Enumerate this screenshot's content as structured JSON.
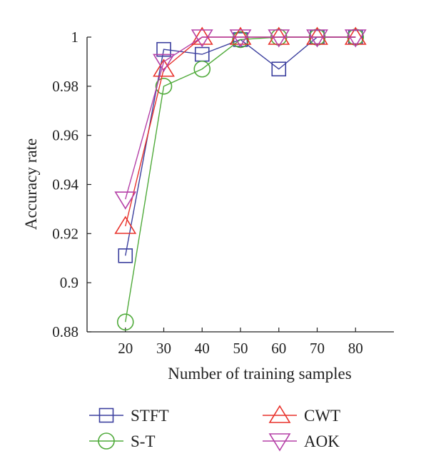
{
  "chart_data": {
    "type": "line",
    "title": "",
    "xlabel": "Number of training samples",
    "ylabel": "Accuracy rate",
    "x": [
      20,
      30,
      40,
      50,
      60,
      70,
      80
    ],
    "x_tick_labels": [
      "20",
      "30",
      "40",
      "50",
      "60",
      "70",
      "80"
    ],
    "xlim": [
      10,
      90
    ],
    "ylim": [
      0.88,
      1.0
    ],
    "y_ticks": [
      0.88,
      0.9,
      0.92,
      0.94,
      0.96,
      0.98,
      1.0
    ],
    "y_tick_labels": [
      "0.88",
      "0.9",
      "0.92",
      "0.94",
      "0.96",
      "0.98",
      "1"
    ],
    "grid": false,
    "legend_position": "bottom",
    "series": [
      {
        "name": "STFT",
        "values": [
          0.911,
          0.995,
          0.993,
          0.999,
          0.987,
          1.0,
          1.0
        ],
        "color": "#3b3f9e",
        "marker": "square"
      },
      {
        "name": "S-T",
        "values": [
          0.884,
          0.98,
          0.987,
          0.999,
          1.0,
          1.0,
          1.0
        ],
        "color": "#4faa3a",
        "marker": "circle"
      },
      {
        "name": "CWT",
        "values": [
          0.923,
          0.987,
          1.0,
          1.0,
          1.0,
          1.0,
          1.0
        ],
        "color": "#e8322b",
        "marker": "triangle-up"
      },
      {
        "name": "AOK",
        "values": [
          0.934,
          0.99,
          1.0,
          1.0,
          1.0,
          1.0,
          1.0
        ],
        "color": "#b540a7",
        "marker": "triangle-down"
      }
    ]
  }
}
